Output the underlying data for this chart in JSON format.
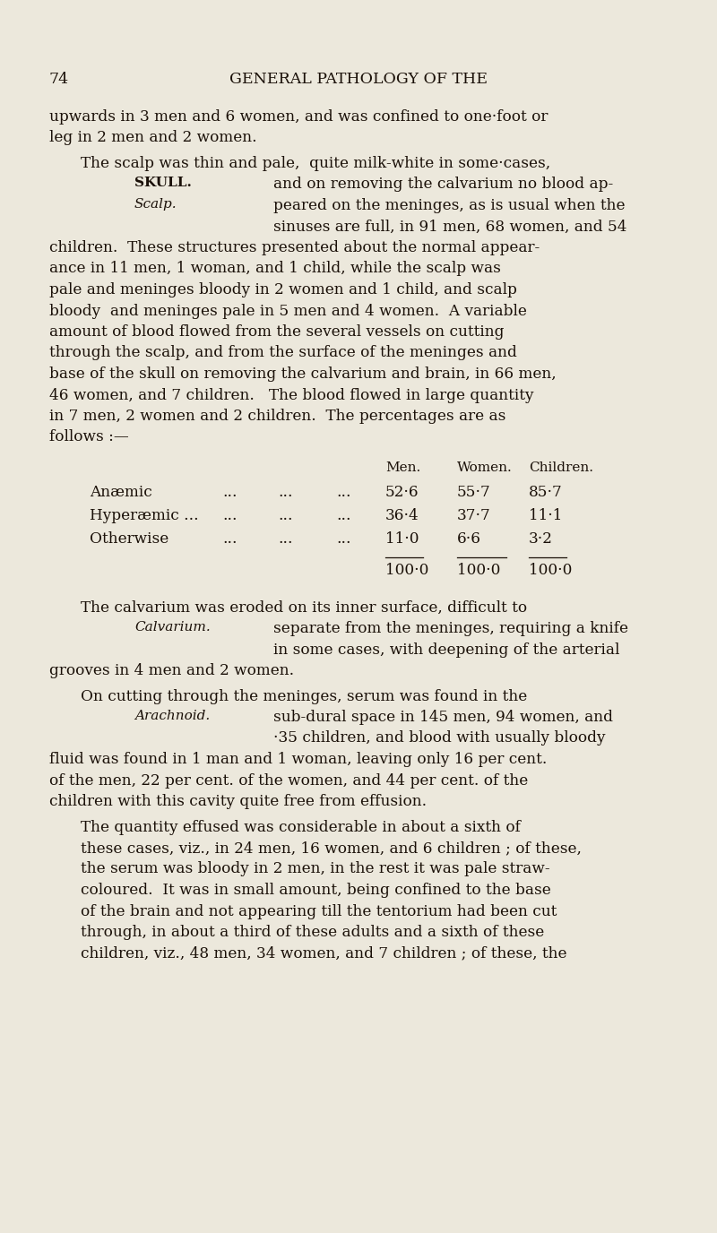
{
  "background_color": "#ece8dc",
  "page_number": "74",
  "header": "GENERAL PATHOLOGY OF THE",
  "text_color": "#1a1008",
  "line1": "upwards in 3 men and 6 women, and was confined to one·foot or",
  "line2": "leg in 2 men and 2 women.",
  "scalp_line1": "The scalp was thin and pale,  quite milk-white in some·cases,",
  "scalp_side1": "SKULL.",
  "scalp_side2": "Scalp.",
  "scalp_right1": "and on removing the calvarium no blood ap-",
  "scalp_right2": "peared on the meninges, as is usual when the",
  "scalp_right3": "sinuses are full, in 91 men, 68 women, and 54",
  "body1_lines": [
    "children.  These structures presented about the normal appear-",
    "ance in 11 men, 1 woman, and 1 child, while the scalp was",
    "pale and meninges bloody in 2 women and 1 child, and scalp",
    "bloody  and meninges pale in 5 men and 4 women.  A variable",
    "amount of blood flowed from the several vessels on cutting",
    "through the scalp, and from the surface of the meninges and",
    "base of the skull on removing the calvarium and brain, in 66 men,",
    "46 women, and 7 children.   The blood flowed in large quantity",
    "in 7 men, 2 women and 2 children.  The percentages are as",
    "follows :—"
  ],
  "table_header": [
    "Men.",
    "Women.",
    "Children."
  ],
  "table_rows": [
    [
      "Anæmic",
      "...",
      "...",
      "...",
      "52·6",
      "55·7",
      "85·7"
    ],
    [
      "Hyperæmic ...",
      "...",
      "...",
      "...",
      "36·4",
      "37·7",
      "11·1"
    ],
    [
      "Otherwise",
      "...",
      "...",
      "...",
      "11·0",
      "6·6",
      "3·2"
    ]
  ],
  "table_total": [
    "100·0",
    "100·0",
    "100·0"
  ],
  "calv_line1": "The calvarium was eroded on its inner surface, difficult to",
  "calv_side": "Calvarium.",
  "calv_right1": "separate from the meninges, requiring a knife",
  "calv_right2": "in some cases, with deepening of the arterial",
  "calv_line2": "grooves in 4 men and 2 women.",
  "arach_line1": "On cutting through the meninges, serum was found in the",
  "arach_side": "Arachnoid.",
  "arach_right1": "sub-dural space in 145 men, 94 women, and",
  "arach_right2": "·35 children, and blood with usually bloody",
  "body2_lines": [
    "fluid was found in 1 man and 1 woman, leaving only 16 per cent.",
    "of the men, 22 per cent. of the women, and 44 per cent. of the",
    "children with this cavity quite free from effusion."
  ],
  "body3_lines": [
    "The quantity effused was considerable in about a sixth of",
    "these cases, viz., in 24 men, 16 women, and 6 children ; of these,",
    "the serum was bloody in 2 men, in the rest it was pale straw-",
    "coloured.  It was in small amount, being confined to the base",
    "of the brain and not appearing till the tentorium had been cut",
    "through, in about a third of these adults and a sixth of these",
    "children, viz., 48 men, 34 women, and 7 children ; of these, the"
  ]
}
